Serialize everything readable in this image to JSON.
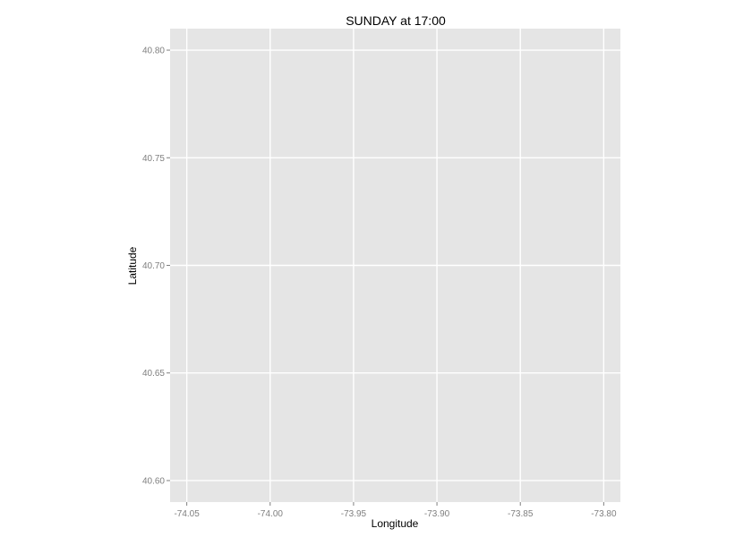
{
  "chart_data": {
    "type": "scatter",
    "title": "SUNDAY at 17:00",
    "xlabel": "Longitude",
    "ylabel": "Latitude",
    "xlim": [
      -74.06,
      -73.79
    ],
    "ylim": [
      40.59,
      40.81
    ],
    "x_ticks": [
      -74.05,
      -74.0,
      -73.95,
      -73.9,
      -73.85,
      -73.8
    ],
    "x_tick_labels": [
      "-74.05",
      "-74.00",
      "-73.95",
      "-73.90",
      "-73.85",
      "-73.80"
    ],
    "y_ticks": [
      40.6,
      40.65,
      40.7,
      40.75,
      40.8
    ],
    "y_tick_labels": [
      "40.60",
      "40.65",
      "40.70",
      "40.75",
      "40.80"
    ],
    "series": [],
    "grid": true,
    "colors": {
      "panel_background": "#e5e5e5",
      "gridline": "#ffffff",
      "tick_text": "#7f7f7f",
      "tick_mark": "#7f7f7f",
      "text": "#000000"
    }
  }
}
